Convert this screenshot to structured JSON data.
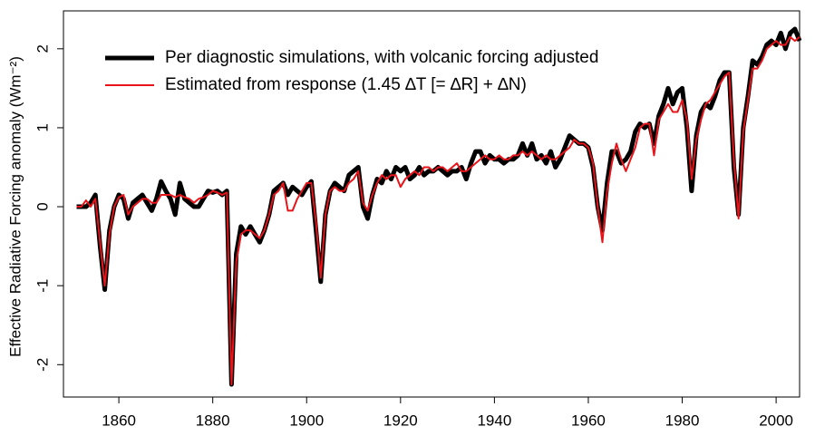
{
  "chart_data": {
    "type": "line",
    "ylabel": "Effective Radiative Forcing anomaly (Wm⁻²)",
    "x": [
      1851,
      1852,
      1853,
      1854,
      1855,
      1856,
      1857,
      1858,
      1859,
      1860,
      1861,
      1862,
      1863,
      1864,
      1865,
      1866,
      1867,
      1868,
      1869,
      1870,
      1871,
      1872,
      1873,
      1874,
      1875,
      1876,
      1877,
      1878,
      1879,
      1880,
      1881,
      1882,
      1883,
      1884,
      1885,
      1886,
      1887,
      1888,
      1889,
      1890,
      1891,
      1892,
      1893,
      1894,
      1895,
      1896,
      1897,
      1898,
      1899,
      1900,
      1901,
      1902,
      1903,
      1904,
      1905,
      1906,
      1907,
      1908,
      1909,
      1910,
      1911,
      1912,
      1913,
      1914,
      1915,
      1916,
      1917,
      1918,
      1919,
      1920,
      1921,
      1922,
      1923,
      1924,
      1925,
      1926,
      1927,
      1928,
      1929,
      1930,
      1931,
      1932,
      1933,
      1934,
      1935,
      1936,
      1937,
      1938,
      1939,
      1940,
      1941,
      1942,
      1943,
      1944,
      1945,
      1946,
      1947,
      1948,
      1949,
      1950,
      1951,
      1952,
      1953,
      1954,
      1955,
      1956,
      1957,
      1958,
      1959,
      1960,
      1961,
      1962,
      1963,
      1964,
      1965,
      1966,
      1967,
      1968,
      1969,
      1970,
      1971,
      1972,
      1973,
      1974,
      1975,
      1976,
      1977,
      1978,
      1979,
      1980,
      1981,
      1982,
      1983,
      1984,
      1985,
      1986,
      1987,
      1988,
      1989,
      1990,
      1991,
      1992,
      1993,
      1994,
      1995,
      1996,
      1997,
      1998,
      1999,
      2000,
      2001,
      2002,
      2003,
      2004,
      2005
    ],
    "series": [
      {
        "name": "Per diagnostic simulations, with volcanic forcing adjusted",
        "color": "#000000",
        "width": 5,
        "values": [
          0.0,
          0.0,
          0.0,
          0.05,
          0.15,
          -0.5,
          -1.05,
          -0.3,
          0.0,
          0.15,
          0.1,
          -0.15,
          0.05,
          0.1,
          0.15,
          0.05,
          -0.05,
          0.1,
          0.32,
          0.2,
          0.1,
          -0.1,
          0.3,
          0.1,
          0.05,
          0.0,
          0.0,
          0.1,
          0.2,
          0.18,
          0.2,
          0.15,
          0.2,
          -2.25,
          -0.6,
          -0.25,
          -0.35,
          -0.25,
          -0.35,
          -0.45,
          -0.3,
          -0.1,
          0.2,
          0.25,
          0.3,
          0.15,
          0.25,
          0.2,
          0.15,
          0.25,
          0.32,
          -0.3,
          -0.95,
          -0.1,
          0.2,
          0.3,
          0.25,
          0.2,
          0.4,
          0.45,
          0.5,
          0.0,
          -0.15,
          0.15,
          0.35,
          0.3,
          0.45,
          0.35,
          0.5,
          0.45,
          0.5,
          0.35,
          0.4,
          0.5,
          0.4,
          0.45,
          0.45,
          0.5,
          0.45,
          0.4,
          0.45,
          0.45,
          0.5,
          0.35,
          0.55,
          0.7,
          0.7,
          0.55,
          0.65,
          0.6,
          0.6,
          0.55,
          0.6,
          0.6,
          0.65,
          0.8,
          0.65,
          0.8,
          0.6,
          0.65,
          0.55,
          0.7,
          0.5,
          0.6,
          0.75,
          0.9,
          0.85,
          0.8,
          0.8,
          0.75,
          0.5,
          0.0,
          -0.3,
          0.3,
          0.7,
          0.7,
          0.55,
          0.6,
          0.7,
          0.95,
          1.05,
          1.0,
          1.05,
          0.8,
          1.15,
          1.3,
          1.5,
          1.3,
          1.45,
          1.5,
          1.0,
          0.2,
          0.9,
          1.2,
          1.3,
          1.25,
          1.4,
          1.6,
          1.7,
          1.7,
          0.5,
          -0.1,
          1.0,
          1.4,
          1.85,
          1.8,
          1.9,
          2.05,
          2.1,
          2.05,
          2.2,
          2.0,
          2.2,
          2.25,
          2.1
        ]
      },
      {
        "name": "Estimated from response (1.45 ∆T [= ∆R] + ∆N)",
        "color": "#e8141a",
        "width": 2,
        "values": [
          0.0,
          0.0,
          0.08,
          0.0,
          0.1,
          -0.45,
          -1.0,
          -0.35,
          0.0,
          0.12,
          0.15,
          -0.1,
          0.0,
          0.05,
          0.1,
          0.1,
          0.05,
          0.05,
          0.15,
          0.15,
          0.15,
          0.12,
          0.15,
          0.12,
          0.1,
          0.05,
          0.1,
          0.12,
          0.15,
          0.2,
          0.18,
          0.15,
          0.18,
          -2.25,
          -0.7,
          -0.35,
          -0.3,
          -0.3,
          -0.35,
          -0.4,
          -0.3,
          -0.1,
          0.15,
          0.2,
          0.3,
          -0.05,
          -0.05,
          0.1,
          0.2,
          0.3,
          0.3,
          -0.2,
          -0.9,
          -0.1,
          0.2,
          0.25,
          0.2,
          0.2,
          0.3,
          0.35,
          0.45,
          0.05,
          -0.05,
          0.15,
          0.3,
          0.4,
          0.35,
          0.4,
          0.4,
          0.25,
          0.35,
          0.4,
          0.45,
          0.4,
          0.5,
          0.5,
          0.45,
          0.5,
          0.5,
          0.45,
          0.5,
          0.55,
          0.45,
          0.45,
          0.5,
          0.55,
          0.6,
          0.65,
          0.6,
          0.6,
          0.65,
          0.6,
          0.6,
          0.65,
          0.65,
          0.7,
          0.65,
          0.7,
          0.65,
          0.6,
          0.65,
          0.6,
          0.6,
          0.65,
          0.7,
          0.75,
          0.85,
          0.8,
          0.8,
          0.75,
          0.55,
          0.0,
          -0.45,
          0.2,
          0.55,
          0.8,
          0.6,
          0.45,
          0.6,
          0.75,
          1.0,
          1.05,
          1.05,
          0.65,
          1.1,
          1.2,
          1.3,
          1.2,
          1.2,
          1.35,
          1.1,
          0.35,
          0.85,
          1.1,
          1.3,
          1.35,
          1.45,
          1.55,
          1.65,
          1.7,
          0.6,
          -0.15,
          0.95,
          1.35,
          1.75,
          1.75,
          1.85,
          2.0,
          2.05,
          2.1,
          2.05,
          2.05,
          2.15,
          2.1,
          2.15
        ]
      }
    ],
    "xlim": [
      1848.2,
      2005
    ],
    "xticks": [
      1860,
      1880,
      1900,
      1920,
      1940,
      1960,
      1980,
      2000
    ],
    "ylim": [
      -2.41,
      2.48
    ],
    "yticks": [
      -2,
      -1,
      0,
      1,
      2
    ]
  }
}
